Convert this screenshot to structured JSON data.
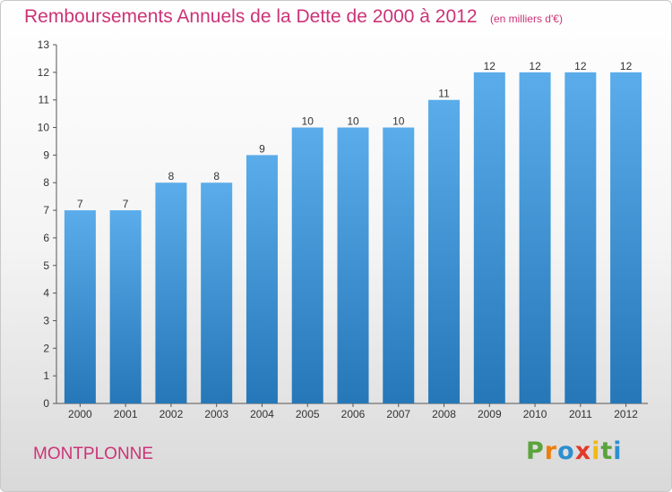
{
  "chart_data": {
    "type": "bar",
    "title": "Remboursements Annuels de la Dette de 2000 à 2012",
    "subtitle": "(en milliers d'€)",
    "categories": [
      "2000",
      "2001",
      "2002",
      "2003",
      "2004",
      "2005",
      "2006",
      "2007",
      "2008",
      "2009",
      "2010",
      "2011",
      "2012"
    ],
    "values": [
      7,
      7,
      8,
      8,
      9,
      10,
      10,
      10,
      11,
      12,
      12,
      12,
      12
    ],
    "data_labels": [
      "7",
      "7",
      "8",
      "8",
      "9",
      "10",
      "10",
      "10",
      "11",
      "12",
      "12",
      "12",
      "12"
    ],
    "ylim": [
      0,
      13
    ],
    "yticks": [
      0,
      1,
      2,
      3,
      4,
      5,
      6,
      7,
      8,
      9,
      10,
      11,
      12,
      13
    ],
    "grid": false,
    "xlabel": "",
    "ylabel": "",
    "bar_color_top": "#5aacea",
    "bar_color_bottom": "#2577b8",
    "text_color": "#cc3377"
  },
  "footer": {
    "town": "MONTPLONNE",
    "logo_letters": [
      "P",
      "r",
      "o",
      "x",
      "i",
      "t",
      "i"
    ],
    "logo_colors": [
      "#5ba33b",
      "#ef7d0b",
      "#2c8fcf",
      "#e3392b",
      "#f2b813",
      "#5ba33b",
      "#2c8fcf"
    ]
  }
}
